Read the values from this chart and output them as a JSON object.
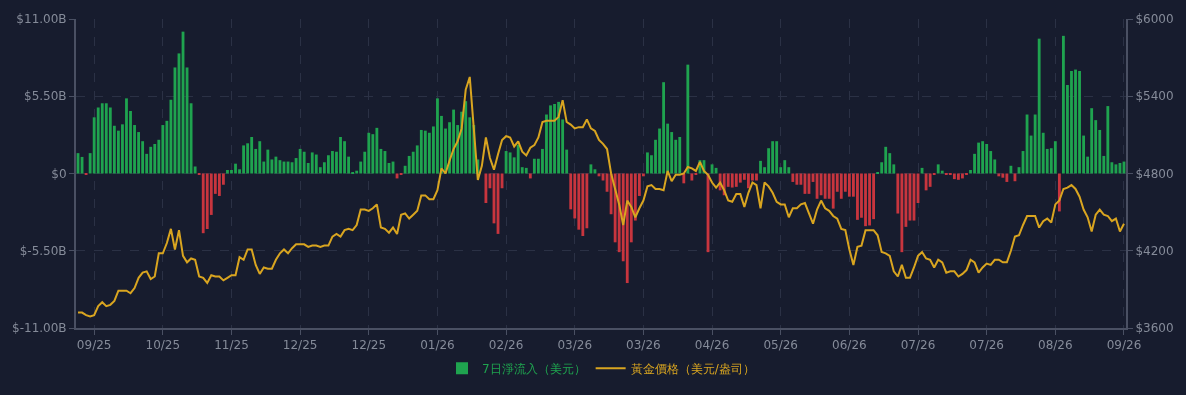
{
  "chart_data": {
    "type": "bar",
    "categories": [
      null,
      null,
      null,
      null,
      "09/25",
      null,
      null,
      null,
      null,
      null,
      null,
      null,
      null,
      null,
      null,
      null,
      null,
      null,
      null,
      null,
      null,
      "10/25",
      null,
      null,
      null,
      null,
      null,
      null,
      null,
      null,
      null,
      null,
      null,
      null,
      null,
      null,
      null,
      null,
      "11/25",
      null,
      null,
      null,
      null,
      null,
      null,
      null,
      null,
      null,
      null,
      null,
      null,
      null,
      null,
      null,
      null,
      "12/25",
      null,
      null,
      null,
      null,
      null,
      null,
      null,
      null,
      null,
      null,
      null,
      null,
      null,
      null,
      null,
      null,
      "12/25",
      null,
      null,
      null,
      null,
      null,
      null,
      null,
      null,
      null,
      null,
      null,
      null,
      null,
      null,
      null,
      null,
      "01/26",
      null,
      null,
      null,
      null,
      null,
      null,
      null,
      null,
      null,
      null,
      null,
      null,
      null,
      null,
      null,
      null,
      "02/26",
      null,
      null,
      null,
      null,
      null,
      null,
      null,
      null,
      null,
      null,
      null,
      null,
      null,
      null,
      null,
      null,
      "03/26",
      null,
      null,
      null,
      null,
      null,
      null,
      null,
      null,
      null,
      null,
      null,
      null,
      null,
      null,
      null,
      null,
      "03/26",
      null,
      null,
      null,
      null,
      null,
      null,
      null,
      null,
      null,
      null,
      null,
      null,
      null,
      null,
      null,
      null,
      "04/26",
      null,
      null,
      null,
      null,
      null,
      null,
      null,
      null,
      null,
      null,
      null,
      null,
      null,
      null,
      null,
      null,
      "05/26",
      null,
      null,
      null,
      null,
      null,
      null,
      null,
      null,
      null,
      null,
      null,
      null,
      null,
      null,
      null,
      null,
      "06/26",
      null,
      null,
      null,
      null,
      null,
      null,
      null,
      null,
      null,
      null,
      null,
      null,
      null,
      null,
      null,
      null,
      "07/26",
      null,
      null,
      null,
      null,
      null,
      null,
      null,
      null,
      null,
      null,
      null,
      null,
      null,
      null,
      null,
      null,
      "07/26",
      null,
      null,
      null,
      null,
      null,
      null,
      null,
      null,
      null,
      null,
      null,
      null,
      null,
      null,
      null,
      null,
      "08/26",
      null,
      null,
      null,
      null,
      null,
      null,
      null,
      null,
      null,
      null,
      null,
      null,
      null,
      null,
      null,
      null,
      "09/26"
    ],
    "series": [
      {
        "name": "7日淨流入（美元）",
        "values": [
          1.45,
          1.18,
          -0.05,
          1.45,
          4.0,
          4.7,
          5.0,
          5.0,
          4.7,
          3.4,
          3.05,
          3.5,
          5.35,
          4.45,
          3.45,
          2.95,
          2.3,
          1.4,
          1.9,
          2.1,
          2.4,
          3.45,
          3.75,
          5.25,
          7.55,
          8.55,
          10.1,
          7.55,
          5.0,
          0.5,
          -0.1,
          -4.25,
          -3.95,
          -2.95,
          -1.45,
          -1.6,
          -0.8,
          0.25,
          0.25,
          0.7,
          0.3,
          2.0,
          2.15,
          2.6,
          1.75,
          2.3,
          0.85,
          1.7,
          1.0,
          1.2,
          0.95,
          0.85,
          0.85,
          0.8,
          1.1,
          1.75,
          1.55,
          0.75,
          1.5,
          1.35,
          0.45,
          0.8,
          1.3,
          1.6,
          1.55,
          2.6,
          2.3,
          1.2,
          0.05,
          0.2,
          0.85,
          1.55,
          2.9,
          2.8,
          3.25,
          1.75,
          1.6,
          0.75,
          0.85,
          -0.35,
          -0.05,
          0.55,
          1.25,
          1.55,
          2.0,
          3.1,
          3.05,
          2.9,
          3.35,
          5.35,
          4.1,
          3.2,
          3.65,
          4.55,
          3.45,
          4.4,
          5.15,
          4.0,
          3.45,
          1.0,
          null,
          -2.1,
          -1.05,
          -3.55,
          -4.3,
          -1.05,
          1.6,
          1.5,
          1.15,
          2.05,
          0.45,
          0.4,
          -0.35,
          1.05,
          1.05,
          1.75,
          4.2,
          4.85,
          4.95,
          5.1,
          3.85,
          1.7,
          -2.55,
          -3.2,
          -4.0,
          -4.45,
          -3.9,
          0.65,
          0.3,
          -0.2,
          -0.5,
          -1.3,
          -2.9,
          -4.9,
          -5.6,
          -6.25,
          -7.8,
          -4.9,
          -3.35,
          -1.6,
          -0.2,
          1.5,
          1.3,
          2.4,
          3.2,
          6.5,
          3.55,
          2.95,
          2.4,
          2.6,
          -0.7,
          7.75,
          -0.5,
          -0.05,
          0.95,
          0.95,
          -5.6,
          0.65,
          0.4,
          -1.2,
          -1.55,
          -0.95,
          -1.0,
          -0.95,
          -0.65,
          -0.45,
          -1.05,
          -0.5,
          -0.5,
          0.9,
          0.45,
          1.8,
          2.3,
          2.3,
          0.45,
          0.95,
          0.45,
          -0.6,
          -0.8,
          -0.8,
          -1.45,
          -1.45,
          -0.6,
          -1.8,
          -1.55,
          -1.8,
          -1.8,
          -2.5,
          -1.3,
          -1.8,
          -1.3,
          -1.65,
          -1.65,
          -3.3,
          -3.15,
          -3.75,
          -3.7,
          -3.25,
          0.05,
          0.8,
          1.9,
          1.45,
          0.65,
          -2.85,
          -5.6,
          -3.8,
          -3.35,
          -3.35,
          -2.1,
          0.4,
          -1.2,
          -0.95,
          -0.05,
          0.65,
          0.2,
          -0.1,
          -0.1,
          -0.4,
          -0.45,
          -0.35,
          -0.05,
          0.25,
          1.4,
          2.2,
          2.3,
          2.1,
          1.6,
          1.0,
          -0.2,
          -0.3,
          -0.6,
          0.55,
          -0.55,
          0.45,
          1.6,
          4.2,
          2.7,
          4.2,
          9.6,
          2.9,
          1.75,
          1.8,
          2.3,
          -2.7,
          9.8,
          6.3,
          7.3,
          7.4,
          7.3,
          2.7,
          1.2,
          4.65,
          3.8,
          3.1,
          1.25,
          4.8,
          0.8,
          0.65,
          0.75,
          0.85
        ],
        "colors": [
          "#1fa34f",
          "#1fa34f",
          "#c8353e",
          "#1fa34f",
          "#1fa34f",
          "#1fa34f",
          "#1fa34f",
          "#1fa34f",
          "#1fa34f",
          "#1fa34f",
          "#1fa34f",
          "#1fa34f",
          "#1fa34f",
          "#1fa34f",
          "#1fa34f",
          "#1fa34f",
          "#1fa34f",
          "#1fa34f",
          "#1fa34f",
          "#1fa34f",
          "#1fa34f",
          "#1fa34f",
          "#1fa34f",
          "#1fa34f",
          "#1fa34f",
          "#1fa34f",
          "#1fa34f",
          "#1fa34f",
          "#1fa34f",
          "#1fa34f",
          "#c8353e",
          "#c8353e",
          "#c8353e",
          "#c8353e",
          "#c8353e",
          "#c8353e",
          "#c8353e",
          "#1fa34f",
          "#1fa34f",
          "#1fa34f",
          "#1fa34f",
          "#1fa34f",
          "#1fa34f",
          "#1fa34f",
          "#1fa34f",
          "#1fa34f",
          "#1fa34f",
          "#1fa34f",
          "#1fa34f",
          "#1fa34f",
          "#1fa34f",
          "#1fa34f",
          "#1fa34f",
          "#1fa34f",
          "#1fa34f",
          "#1fa34f",
          "#1fa34f",
          "#1fa34f",
          "#1fa34f",
          "#1fa34f",
          "#1fa34f",
          "#1fa34f",
          "#1fa34f",
          "#1fa34f",
          "#1fa34f",
          "#1fa34f",
          "#1fa34f",
          "#1fa34f",
          "#1fa34f",
          "#1fa34f",
          "#1fa34f",
          "#1fa34f",
          "#1fa34f",
          "#1fa34f",
          "#1fa34f",
          "#1fa34f",
          "#1fa34f",
          "#1fa34f",
          "#1fa34f",
          "#c8353e",
          "#c8353e",
          "#1fa34f",
          "#1fa34f",
          "#1fa34f",
          "#1fa34f",
          "#1fa34f",
          "#1fa34f",
          "#1fa34f",
          "#1fa34f",
          "#1fa34f",
          "#1fa34f",
          "#1fa34f",
          "#1fa34f",
          "#1fa34f",
          "#1fa34f",
          "#1fa34f",
          "#1fa34f",
          "#1fa34f",
          "#1fa34f",
          "#1fa34f",
          "#1fa34f",
          "#c8353e",
          "#c8353e",
          "#c8353e",
          "#c8353e",
          "#c8353e",
          "#1fa34f",
          "#1fa34f",
          "#1fa34f",
          "#1fa34f",
          "#1fa34f",
          "#1fa34f",
          "#c8353e",
          "#1fa34f",
          "#1fa34f",
          "#1fa34f",
          "#1fa34f",
          "#1fa34f",
          "#1fa34f",
          "#1fa34f",
          "#1fa34f",
          "#1fa34f",
          "#c8353e",
          "#c8353e",
          "#c8353e",
          "#c8353e",
          "#c8353e",
          "#1fa34f",
          "#1fa34f",
          "#c8353e",
          "#c8353e",
          "#c8353e",
          "#c8353e",
          "#c8353e",
          "#c8353e",
          "#c8353e",
          "#c8353e",
          "#c8353e",
          "#c8353e",
          "#c8353e",
          "#c8353e",
          "#1fa34f",
          "#1fa34f",
          "#1fa34f",
          "#1fa34f",
          "#1fa34f",
          "#1fa34f",
          "#1fa34f",
          "#1fa34f",
          "#1fa34f",
          "#c8353e",
          "#1fa34f",
          "#c8353e",
          "#c8353e",
          "#1fa34f",
          "#1fa34f",
          "#c8353e",
          "#1fa34f",
          "#1fa34f",
          "#c8353e",
          "#c8353e",
          "#c8353e",
          "#c8353e",
          "#c8353e",
          "#c8353e",
          "#c8353e",
          "#c8353e",
          "#c8353e",
          "#c8353e",
          "#1fa34f",
          "#1fa34f",
          "#1fa34f",
          "#1fa34f",
          "#1fa34f",
          "#1fa34f",
          "#1fa34f",
          "#1fa34f",
          "#c8353e",
          "#c8353e",
          "#c8353e",
          "#c8353e",
          "#c8353e",
          "#c8353e",
          "#c8353e",
          "#c8353e",
          "#c8353e",
          "#c8353e",
          "#c8353e",
          "#c8353e",
          "#c8353e",
          "#c8353e",
          "#c8353e",
          "#c8353e",
          "#c8353e",
          "#c8353e",
          "#c8353e",
          "#c8353e",
          "#c8353e",
          "#1fa34f",
          "#1fa34f",
          "#1fa34f",
          "#1fa34f",
          "#1fa34f",
          "#c8353e",
          "#c8353e",
          "#c8353e",
          "#c8353e",
          "#c8353e",
          "#c8353e",
          "#1fa34f",
          "#c8353e",
          "#c8353e",
          "#c8353e",
          "#1fa34f",
          "#1fa34f",
          "#c8353e",
          "#c8353e",
          "#c8353e",
          "#c8353e",
          "#c8353e",
          "#c8353e",
          "#1fa34f",
          "#1fa34f",
          "#1fa34f",
          "#1fa34f",
          "#1fa34f",
          "#1fa34f",
          "#1fa34f",
          "#c8353e",
          "#c8353e",
          "#c8353e",
          "#1fa34f",
          "#c8353e",
          "#1fa34f",
          "#1fa34f",
          "#1fa34f",
          "#1fa34f",
          "#1fa34f",
          "#1fa34f",
          "#1fa34f",
          "#1fa34f",
          "#1fa34f",
          "#1fa34f",
          "#c8353e",
          "#1fa34f",
          "#1fa34f",
          "#1fa34f",
          "#1fa34f",
          "#1fa34f",
          "#1fa34f",
          "#1fa34f",
          "#1fa34f",
          "#1fa34f",
          "#1fa34f",
          "#1fa34f",
          "#1fa34f",
          "#1fa34f",
          "#1fa34f",
          "#1fa34f",
          "#1fa34f"
        ]
      },
      {
        "name": "黃金價格（美元/盎司）",
        "type": "line",
        "axis": "y2",
        "color": "#d9a520",
        "values": [
          3720,
          3720,
          3700,
          3690,
          3700,
          3770,
          3800,
          3770,
          3780,
          3810,
          3890,
          3890,
          3890,
          3870,
          3910,
          3990,
          4030,
          4040,
          3980,
          4000,
          4180,
          4180,
          4260,
          4370,
          4210,
          4360,
          4160,
          4110,
          4140,
          4130,
          4000,
          3990,
          3950,
          4010,
          4000,
          4000,
          3970,
          3990,
          4010,
          4010,
          4150,
          4130,
          4210,
          4210,
          4090,
          4020,
          4070,
          4060,
          4060,
          4130,
          4180,
          4210,
          4180,
          4220,
          4250,
          4250,
          4250,
          4230,
          4240,
          4240,
          4230,
          4240,
          4240,
          4310,
          4330,
          4310,
          4360,
          4370,
          4360,
          4400,
          4520,
          4520,
          4510,
          4530,
          4560,
          4380,
          4370,
          4340,
          4380,
          4330,
          4480,
          4490,
          4450,
          4480,
          4510,
          4630,
          4630,
          4600,
          4600,
          4670,
          4840,
          4800,
          4900,
          4990,
          5050,
          5150,
          5450,
          5550,
          5150,
          4750,
          4860,
          5080,
          4920,
          4830,
          4950,
          5060,
          5090,
          5080,
          5010,
          5050,
          4970,
          4940,
          5000,
          5020,
          5080,
          5200,
          5210,
          5210,
          5210,
          5240,
          5370,
          5200,
          5180,
          5150,
          5160,
          5160,
          5220,
          5150,
          5130,
          5060,
          5030,
          4990,
          4800,
          4680,
          4560,
          4400,
          4590,
          4540,
          4460,
          4530,
          4590,
          4700,
          4710,
          4680,
          4680,
          4670,
          4820,
          4740,
          4790,
          4790,
          4800,
          4850,
          4840,
          4820,
          4890,
          4820,
          4790,
          4730,
          4690,
          4730,
          4670,
          4590,
          4580,
          4640,
          4640,
          4540,
          4650,
          4730,
          4710,
          4530,
          4730,
          4700,
          4650,
          4580,
          4560,
          4560,
          4460,
          4530,
          4530,
          4560,
          4570,
          4490,
          4410,
          4520,
          4590,
          4530,
          4510,
          4470,
          4450,
          4370,
          4360,
          4210,
          4090,
          4230,
          4240,
          4360,
          4360,
          4360,
          4320,
          4190,
          4180,
          4160,
          4040,
          4000,
          4090,
          3990,
          3990,
          4070,
          4160,
          4190,
          4140,
          4130,
          4070,
          4130,
          4110,
          4030,
          4040,
          4040,
          4000,
          4020,
          4050,
          4130,
          4110,
          4030,
          4070,
          4100,
          4090,
          4130,
          4130,
          4110,
          4110,
          4200,
          4310,
          4320,
          4400,
          4470,
          4470,
          4470,
          4380,
          4430,
          4450,
          4420,
          4560,
          4590,
          4680,
          4690,
          4710,
          4680,
          4620,
          4520,
          4460,
          4350,
          4480,
          4520,
          4480,
          4470,
          4430,
          4450,
          4350,
          4410
        ]
      }
    ],
    "ylim": [
      -11,
      11
    ],
    "yticks": [
      {
        "value": -11,
        "label": "$-11.00B"
      },
      {
        "value": -5.5,
        "label": "$-5.50B"
      },
      {
        "value": 0,
        "label": "$0"
      },
      {
        "value": 5.5,
        "label": "$5.50B"
      },
      {
        "value": 11,
        "label": "$11.00B"
      }
    ],
    "y2lim": [
      3600,
      6000
    ],
    "y2ticks": [
      {
        "value": 3600,
        "label": "$3600"
      },
      {
        "value": 4200,
        "label": "$4200"
      },
      {
        "value": 4800,
        "label": "$4800"
      },
      {
        "value": 5400,
        "label": "$5400"
      },
      {
        "value": 6000,
        "label": "$6000"
      }
    ],
    "grid": true,
    "legend": "bottom",
    "marker": "none"
  }
}
